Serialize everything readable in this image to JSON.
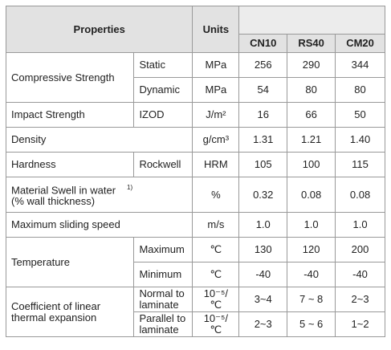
{
  "header": {
    "properties": "Properties",
    "units": "Units",
    "grades": [
      "CN10",
      "RS40",
      "CM20"
    ]
  },
  "groups": [
    {
      "property": "Compressive Strength",
      "rows": [
        {
          "condition": "Static",
          "unit": "MPa",
          "values": [
            "256",
            "290",
            "344"
          ]
        },
        {
          "condition": "Dynamic",
          "unit": "MPa",
          "values": [
            "54",
            "80",
            "80"
          ]
        }
      ]
    },
    {
      "property": "Impact Strength",
      "rows": [
        {
          "condition": "IZOD",
          "unit": "J/m²",
          "values": [
            "16",
            "66",
            "50"
          ]
        }
      ]
    },
    {
      "property": "Density",
      "rows": [
        {
          "unit": "g/cm³",
          "values": [
            "1.31",
            "1.21",
            "1.40"
          ]
        }
      ]
    },
    {
      "property": "Hardness",
      "rows": [
        {
          "condition": "Rockwell",
          "unit": "HRM",
          "values": [
            "105",
            "100",
            "115"
          ]
        }
      ]
    },
    {
      "property": "Material Swell in water",
      "note": "1)",
      "detail": "(% wall thickness)",
      "rows": [
        {
          "unit": "%",
          "values": [
            "0.32",
            "0.08",
            "0.08"
          ]
        }
      ]
    },
    {
      "property": "Maximum sliding speed",
      "rows": [
        {
          "unit": "m/s",
          "values": [
            "1.0",
            "1.0",
            "1.0"
          ]
        }
      ]
    },
    {
      "property": "Temperature",
      "rows": [
        {
          "condition": "Maximum",
          "unit": "℃",
          "values": [
            "130",
            "120",
            "200"
          ]
        },
        {
          "condition": "Minimum",
          "unit": "℃",
          "values": [
            "-40",
            "-40",
            "-40"
          ]
        }
      ]
    },
    {
      "property": "Coefficient of linear thermal expansion",
      "rows": [
        {
          "condition": "Normal to laminate",
          "unit": "10⁻⁵/℃",
          "values": [
            "3~4",
            "7 ~ 8",
            "2~3"
          ]
        },
        {
          "condition": "Parallel to laminate",
          "unit": "10⁻⁵/℃",
          "values": [
            "2~3",
            "5 ~ 6",
            "1~2"
          ]
        }
      ]
    }
  ]
}
